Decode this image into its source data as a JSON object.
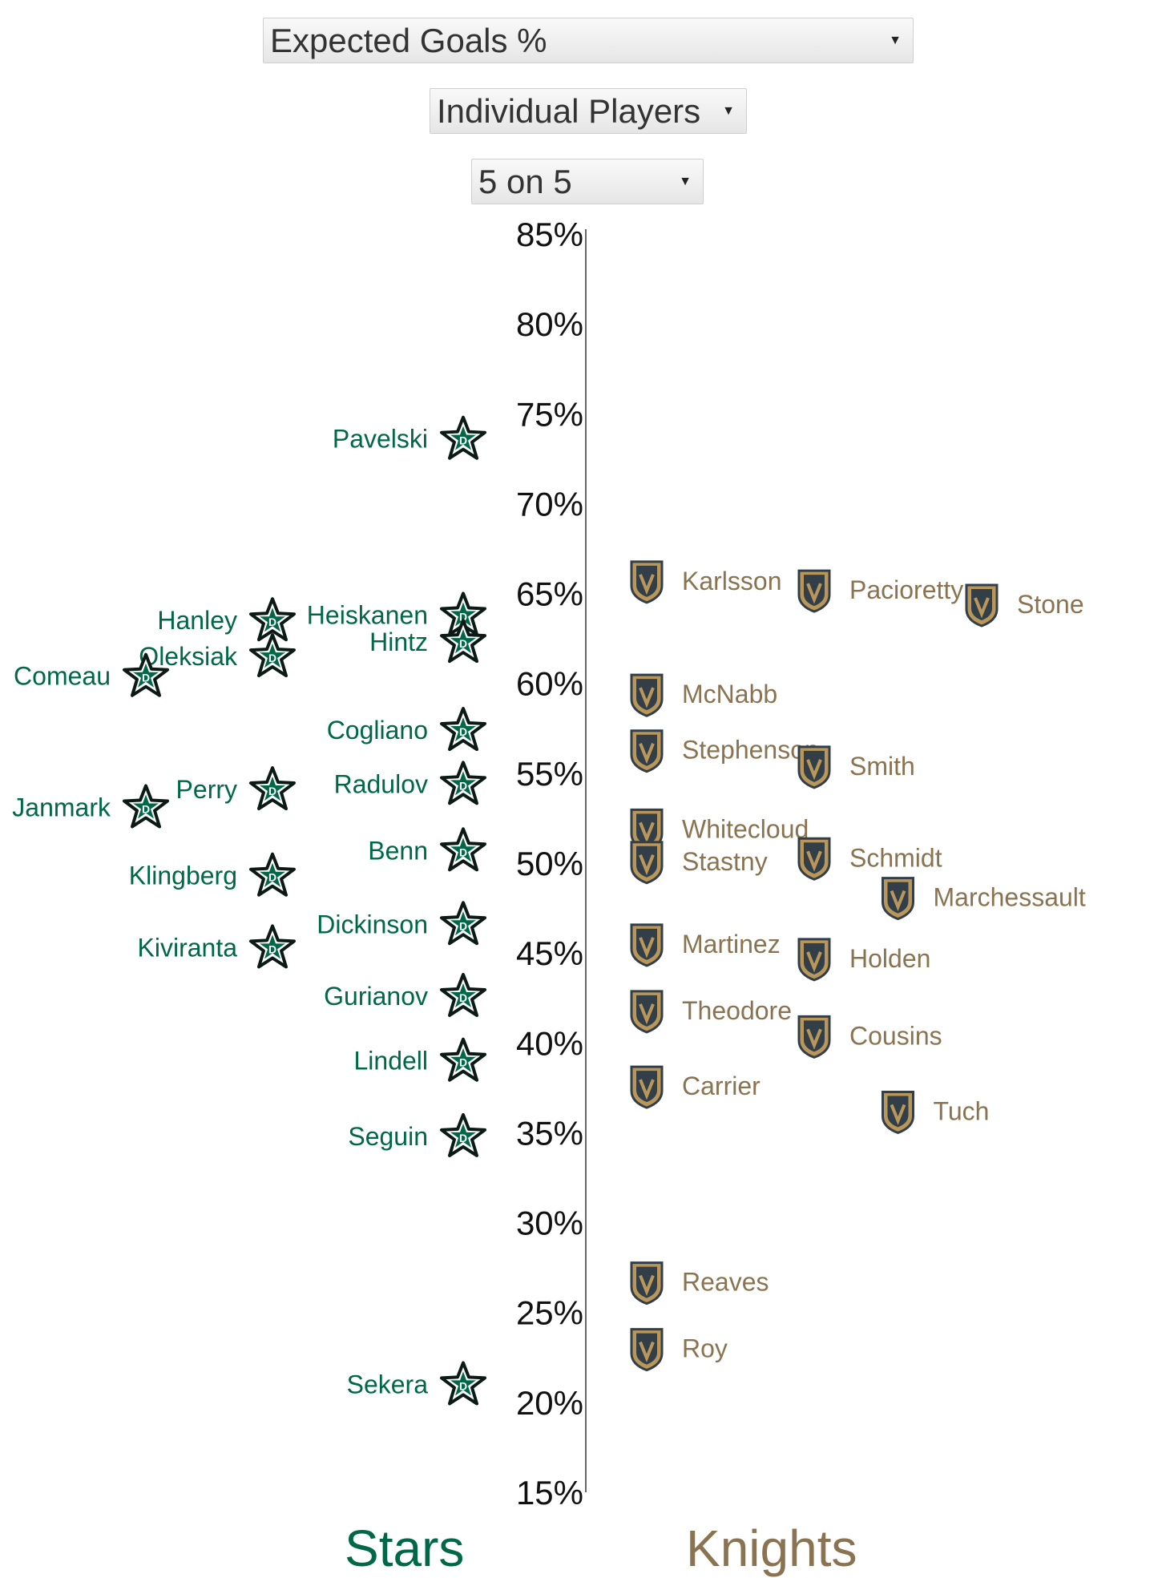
{
  "controls": {
    "metric": "Expected Goals %",
    "player_mode": "Individual Players",
    "situation": "5 on 5"
  },
  "teams": {
    "left": {
      "name": "Stars",
      "color": "#006847",
      "icon": "stars-logo-icon"
    },
    "right": {
      "name": "Knights",
      "color": "#8a7350",
      "icon": "golden-knights-logo-icon"
    }
  },
  "chart_data": {
    "type": "scatter",
    "title": "",
    "xlabel": "",
    "ylabel": "",
    "ylim": [
      15,
      85
    ],
    "y_ticks": [
      "85%",
      "80%",
      "75%",
      "70%",
      "65%",
      "60%",
      "55%",
      "50%",
      "45%",
      "40%",
      "35%",
      "30%",
      "25%",
      "20%",
      "15%"
    ],
    "grid": false,
    "series": [
      {
        "name": "Stars",
        "points": [
          {
            "label": "Pavelski",
            "y": 73.6,
            "col": 0
          },
          {
            "label": "Heiskanen",
            "y": 63.8,
            "col": 0
          },
          {
            "label": "Hintz",
            "y": 62.3,
            "col": 0
          },
          {
            "label": "Cogliano",
            "y": 57.4,
            "col": 0
          },
          {
            "label": "Radulov",
            "y": 54.4,
            "col": 0
          },
          {
            "label": "Benn",
            "y": 50.7,
            "col": 0
          },
          {
            "label": "Dickinson",
            "y": 46.6,
            "col": 0
          },
          {
            "label": "Gurianov",
            "y": 42.6,
            "col": 0
          },
          {
            "label": "Lindell",
            "y": 39.0,
            "col": 0
          },
          {
            "label": "Seguin",
            "y": 34.8,
            "col": 0
          },
          {
            "label": "Sekera",
            "y": 21.0,
            "col": 0
          },
          {
            "label": "Hanley",
            "y": 63.5,
            "col": 1
          },
          {
            "label": "Oleksiak",
            "y": 61.5,
            "col": 1
          },
          {
            "label": "Perry",
            "y": 54.1,
            "col": 1
          },
          {
            "label": "Klingberg",
            "y": 49.3,
            "col": 1
          },
          {
            "label": "Kiviranta",
            "y": 45.3,
            "col": 1
          },
          {
            "label": "Comeau",
            "y": 60.4,
            "col": 2
          },
          {
            "label": "Janmark",
            "y": 53.1,
            "col": 2
          }
        ]
      },
      {
        "name": "Knights",
        "points": [
          {
            "label": "Karlsson",
            "y": 65.7,
            "col": 0
          },
          {
            "label": "McNabb",
            "y": 59.4,
            "col": 0
          },
          {
            "label": "Stephenson",
            "y": 56.3,
            "col": 0
          },
          {
            "label": "Whitecloud",
            "y": 51.9,
            "col": 0
          },
          {
            "label": "Stastny",
            "y": 50.1,
            "col": 0
          },
          {
            "label": "Martinez",
            "y": 45.5,
            "col": 0
          },
          {
            "label": "Theodore",
            "y": 41.8,
            "col": 0
          },
          {
            "label": "Carrier",
            "y": 37.6,
            "col": 0
          },
          {
            "label": "Reaves",
            "y": 26.7,
            "col": 0
          },
          {
            "label": "Roy",
            "y": 23.0,
            "col": 0
          },
          {
            "label": "Pacioretty",
            "y": 65.2,
            "col": 1
          },
          {
            "label": "Smith",
            "y": 55.4,
            "col": 1
          },
          {
            "label": "Schmidt",
            "y": 50.3,
            "col": 1
          },
          {
            "label": "Holden",
            "y": 44.7,
            "col": 1
          },
          {
            "label": "Cousins",
            "y": 40.4,
            "col": 1
          },
          {
            "label": "Marchessault",
            "y": 48.1,
            "col": 1.5
          },
          {
            "label": "Tuch",
            "y": 36.2,
            "col": 1.5
          },
          {
            "label": "Stone",
            "y": 64.4,
            "col": 2
          }
        ]
      }
    ]
  }
}
